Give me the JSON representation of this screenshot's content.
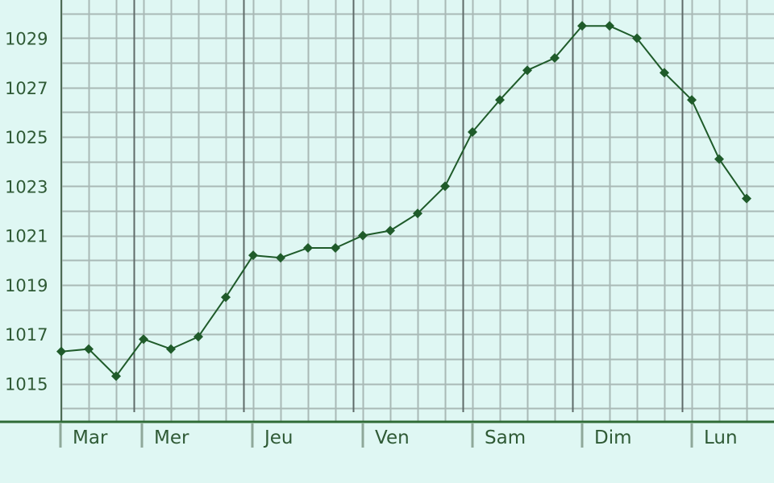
{
  "colors": {
    "background": "#dff7f3",
    "grid_minor": "#a9b9b6",
    "grid_major": "#5f6b69",
    "axis": "#2f6b36",
    "series_line": "#1f5b2a",
    "marker": "#1f5b2a",
    "tick_text": "#2f5a35"
  },
  "chart_data": {
    "type": "line",
    "title": "",
    "xlabel": "",
    "ylabel": "",
    "y_ticks": [
      "1015",
      "1017",
      "1019",
      "1021",
      "1023",
      "1025",
      "1027",
      "1029"
    ],
    "day_labels": [
      "Mar",
      "Mer",
      "Jeu",
      "Ven",
      "Sam",
      "Dim",
      "Lun"
    ],
    "ylim": [
      1013.3,
      1030.3
    ],
    "grid": true,
    "legend": "none",
    "marker": "diamond",
    "series": [
      {
        "values": [
          1016.3,
          1016.4,
          1015.3,
          1016.8,
          1016.4,
          1016.9,
          1018.5,
          1020.2,
          1020.1,
          1020.5,
          1020.5,
          1021.0,
          1021.2,
          1021.9,
          1023.0,
          1025.2,
          1026.5,
          1027.7,
          1028.2,
          1029.5,
          1029.5,
          1029.0,
          1027.6,
          1026.5,
          1024.1,
          1022.5
        ]
      }
    ]
  }
}
